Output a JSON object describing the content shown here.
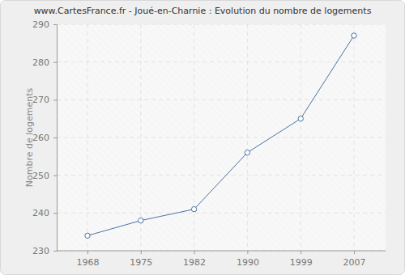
{
  "chart_data": {
    "type": "line",
    "title": "www.CartesFrance.fr - Joué-en-Charnie : Evolution du nombre de logements",
    "y_label": "Nombre de logements",
    "categories": [
      "1968",
      "1975",
      "1982",
      "1990",
      "1999",
      "2007"
    ],
    "values": [
      234,
      238,
      241,
      256,
      265,
      287
    ],
    "color": "#4a74a5",
    "marker": "circle",
    "ylim": [
      230,
      290
    ],
    "yticks": [
      230,
      240,
      250,
      260,
      270,
      280,
      290
    ],
    "grid": true
  }
}
